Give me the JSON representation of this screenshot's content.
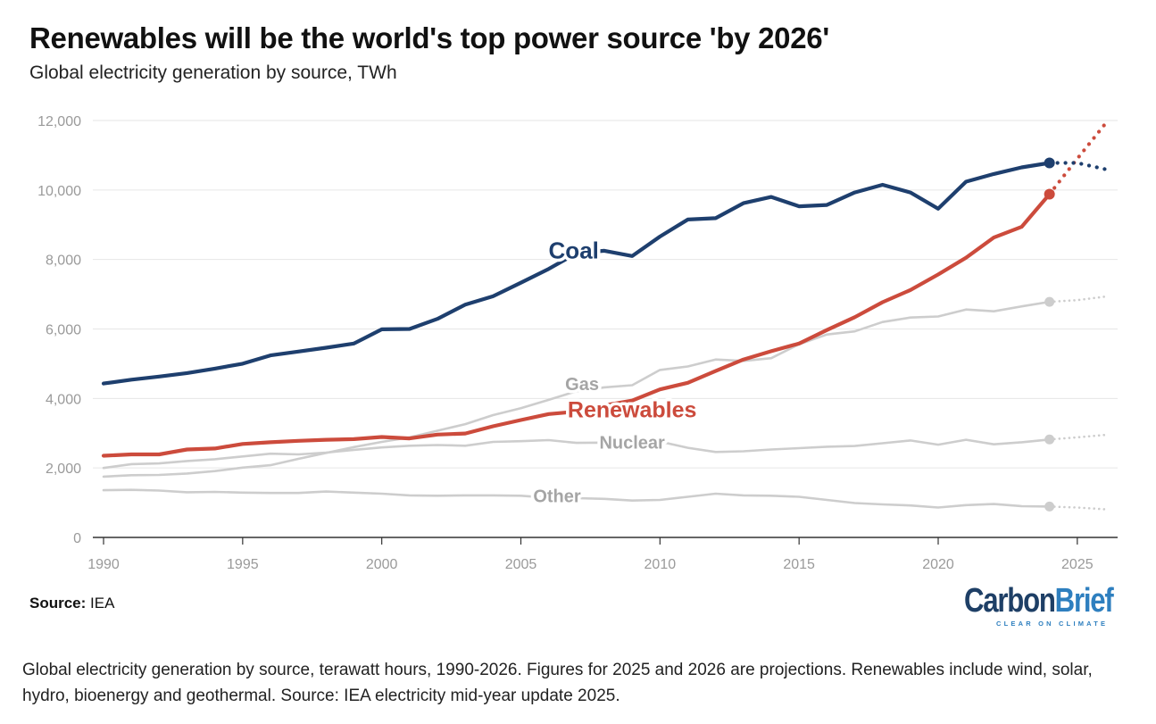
{
  "header": {
    "title": "Renewables will be the world's top power source 'by 2026'",
    "subtitle": "Global electricity generation by source, TWh"
  },
  "footer": {
    "source_label": "Source:",
    "source_value": "IEA",
    "logo_main": "Carbon",
    "logo_accent": "Brief",
    "logo_tagline": "CLEAR ON CLIMATE",
    "caption": "Global electricity generation by source, terawatt hours, 1990-2026. Figures for 2025 and 2026 are projections. Renewables include wind, solar, hydro, bioenergy and geothermal. Source: IEA electricity mid-year update 2025."
  },
  "colors": {
    "coal": "#1e3f6e",
    "renewables": "#cc4b3c",
    "other_series": "#cdcdcd",
    "other_label": "#a5a5a5",
    "grid": "#e6e6e6",
    "axis": "#333333"
  },
  "chart_data": {
    "type": "line",
    "title": "Renewables will be the world's top power source 'by 2026'",
    "subtitle": "Global electricity generation by source, TWh",
    "xlim": [
      1990,
      2026
    ],
    "ylim": [
      0,
      12000
    ],
    "xticks": [
      1990,
      1995,
      2000,
      2005,
      2010,
      2015,
      2020,
      2025
    ],
    "yticks": [
      0,
      2000,
      4000,
      6000,
      8000,
      10000,
      12000
    ],
    "ytick_labels": [
      "0",
      "2,000",
      "4,000",
      "6,000",
      "8,000",
      "10,000",
      "12,000"
    ],
    "grid": "horizontal",
    "legend": "direct labels on lines",
    "x": [
      1990,
      1991,
      1992,
      1993,
      1994,
      1995,
      1996,
      1997,
      1998,
      1999,
      2000,
      2001,
      2002,
      2003,
      2004,
      2005,
      2006,
      2007,
      2008,
      2009,
      2010,
      2011,
      2012,
      2013,
      2014,
      2015,
      2016,
      2017,
      2018,
      2019,
      2020,
      2021,
      2022,
      2023,
      2024
    ],
    "projection_x": [
      2024,
      2025,
      2026
    ],
    "series": [
      {
        "name": "Coal",
        "key": "coal",
        "values": [
          4430,
          4540,
          4630,
          4730,
          4860,
          5000,
          5240,
          5350,
          5460,
          5580,
          5990,
          6000,
          6290,
          6700,
          6940,
          7330,
          7730,
          8180,
          8250,
          8100,
          8660,
          9150,
          9190,
          9620,
          9800,
          9530,
          9570,
          9930,
          10150,
          9930,
          9460,
          10240,
          10460,
          10650,
          10780
        ],
        "projection": [
          10780,
          10780,
          10600
        ]
      },
      {
        "name": "Renewables",
        "key": "renewables",
        "values": [
          2350,
          2390,
          2390,
          2530,
          2560,
          2690,
          2740,
          2780,
          2810,
          2830,
          2890,
          2850,
          2960,
          2990,
          3200,
          3380,
          3550,
          3620,
          3800,
          3940,
          4260,
          4450,
          4790,
          5120,
          5360,
          5580,
          5970,
          6340,
          6770,
          7120,
          7570,
          8050,
          8630,
          8940,
          9880
        ],
        "projection": [
          9880,
          10900,
          11900
        ]
      },
      {
        "name": "Gas",
        "key": "gas",
        "values": [
          1750,
          1790,
          1800,
          1840,
          1910,
          2010,
          2080,
          2260,
          2430,
          2600,
          2750,
          2880,
          3070,
          3260,
          3520,
          3720,
          3960,
          4210,
          4320,
          4380,
          4820,
          4920,
          5120,
          5080,
          5160,
          5560,
          5840,
          5930,
          6200,
          6330,
          6360,
          6560,
          6510,
          6650,
          6780
        ],
        "projection": [
          6780,
          6830,
          6930
        ]
      },
      {
        "name": "Nuclear",
        "key": "nuclear",
        "values": [
          2000,
          2110,
          2130,
          2200,
          2250,
          2330,
          2410,
          2390,
          2440,
          2520,
          2590,
          2640,
          2660,
          2640,
          2750,
          2770,
          2800,
          2720,
          2730,
          2700,
          2760,
          2580,
          2460,
          2480,
          2530,
          2570,
          2610,
          2630,
          2710,
          2790,
          2670,
          2810,
          2680,
          2740,
          2820
        ],
        "projection": [
          2820,
          2880,
          2950
        ]
      },
      {
        "name": "Other",
        "key": "other",
        "values": [
          1360,
          1370,
          1350,
          1300,
          1310,
          1290,
          1280,
          1280,
          1320,
          1290,
          1260,
          1210,
          1200,
          1210,
          1210,
          1200,
          1140,
          1130,
          1110,
          1060,
          1080,
          1170,
          1260,
          1210,
          1200,
          1170,
          1080,
          990,
          950,
          920,
          860,
          930,
          960,
          900,
          890
        ],
        "projection": [
          890,
          860,
          810
        ]
      }
    ]
  }
}
